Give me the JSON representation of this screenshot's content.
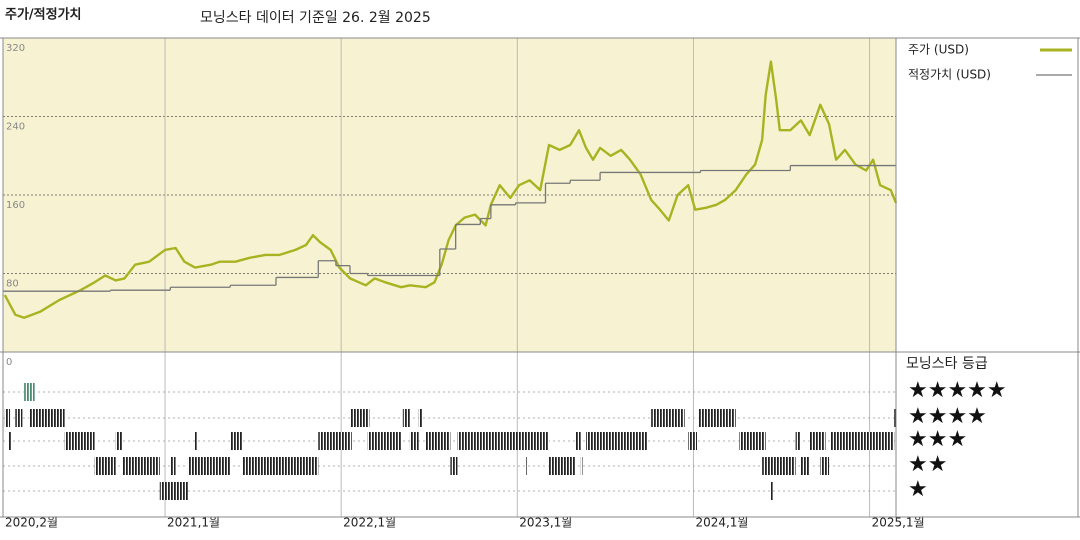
{
  "chart_data": {
    "type": "line",
    "title": "주가/적정가치",
    "subtitle": "모닝스타 데이터 기준일 26. 2월 2025",
    "xlim": [
      2020.08,
      2025.15
    ],
    "xticks": [
      {
        "value": 2020.08,
        "label": "2020,2월"
      },
      {
        "value": 2021,
        "label": "2021,1월"
      },
      {
        "value": 2022,
        "label": "2022,1월"
      },
      {
        "value": 2023,
        "label": "2023,1월"
      },
      {
        "value": 2024,
        "label": "2024,1월"
      },
      {
        "value": 2025,
        "label": "2025,1월"
      }
    ],
    "ylim": [
      0,
      320
    ],
    "yticks": [
      0,
      80,
      160,
      240,
      320
    ],
    "grid": true,
    "series": [
      {
        "name": "주가 (USD)",
        "color": "#a9b322",
        "x": [
          2020.09,
          2020.15,
          2020.2,
          2020.29,
          2020.4,
          2020.52,
          2020.6,
          2020.66,
          2020.72,
          2020.77,
          2020.83,
          2020.91,
          2021.0,
          2021.06,
          2021.11,
          2021.17,
          2021.26,
          2021.31,
          2021.4,
          2021.48,
          2021.57,
          2021.65,
          2021.74,
          2021.8,
          2021.84,
          2021.88,
          2021.94,
          2021.99,
          2022.05,
          2022.14,
          2022.19,
          2022.25,
          2022.34,
          2022.39,
          2022.48,
          2022.53,
          2022.57,
          2022.61,
          2022.65,
          2022.7,
          2022.76,
          2022.82,
          2022.85,
          2022.9,
          2022.96,
          2023.01,
          2023.07,
          2023.13,
          2023.18,
          2023.24,
          2023.3,
          2023.35,
          2023.39,
          2023.43,
          2023.47,
          2023.53,
          2023.59,
          2023.64,
          2023.7,
          2023.76,
          2023.81,
          2023.86,
          2023.91,
          2023.97,
          2024.01,
          2024.07,
          2024.13,
          2024.18,
          2024.24,
          2024.3,
          2024.35,
          2024.39,
          2024.41,
          2024.44,
          2024.47,
          2024.49,
          2024.55,
          2024.61,
          2024.66,
          2024.72,
          2024.77,
          2024.81,
          2024.86,
          2024.92,
          2024.98,
          2025.02,
          2025.06,
          2025.12,
          2025.15
        ],
        "values": [
          58,
          38,
          35,
          41,
          53,
          63,
          71,
          78,
          73,
          75,
          89,
          92,
          104,
          106,
          92,
          86,
          89,
          92,
          92,
          96,
          99,
          99,
          104,
          109,
          119,
          112,
          104,
          86,
          75,
          68,
          75,
          71,
          66,
          68,
          66,
          71,
          89,
          114,
          129,
          137,
          140,
          129,
          150,
          170,
          157,
          170,
          175,
          165,
          211,
          206,
          211,
          226,
          208,
          196,
          208,
          200,
          206,
          196,
          181,
          155,
          145,
          134,
          160,
          170,
          145,
          147,
          150,
          155,
          165,
          181,
          191,
          216,
          262,
          296,
          257,
          226,
          226,
          236,
          221,
          252,
          232,
          196,
          206,
          191,
          185,
          196,
          170,
          165,
          152
        ]
      },
      {
        "name": "적정가치 (USD)",
        "color": "#777777",
        "step": true,
        "x": [
          2020.08,
          2020.69,
          2021.03,
          2021.37,
          2021.63,
          2021.87,
          2021.97,
          2022.05,
          2022.15,
          2022.56,
          2022.65,
          2022.79,
          2022.85,
          2022.99,
          2023.16,
          2023.3,
          2023.47,
          2024.04,
          2024.55
        ],
        "values": [
          62,
          63,
          66,
          68,
          76,
          93,
          88,
          80,
          78,
          105,
          130,
          136,
          150,
          152,
          172,
          175,
          183,
          185,
          190
        ]
      }
    ],
    "ratings": {
      "title": "모닝스타 등급",
      "rows": [
        {
          "label": "★★★★★",
          "color": "#4a8a70",
          "periods": [
            [
              2020.2,
              2020.26
            ]
          ]
        },
        {
          "label": "★★★★",
          "color": "#222222",
          "periods": [
            [
              2020.09,
              2020.12
            ],
            [
              2020.15,
              2020.19
            ],
            [
              2020.23,
              2020.43
            ],
            [
              2022.05,
              2022.16
            ],
            [
              2022.35,
              2022.39
            ],
            [
              2022.44,
              2022.46
            ],
            [
              2023.76,
              2023.95
            ],
            [
              2024.03,
              2024.24
            ],
            [
              2025.14,
              2025.15
            ]
          ]
        },
        {
          "label": "★★★",
          "color": "#222222",
          "periods": [
            [
              2020.11,
              2020.13
            ],
            [
              2020.43,
              2020.6
            ],
            [
              2020.72,
              2020.76
            ],
            [
              2021.17,
              2021.18
            ],
            [
              2021.37,
              2021.44
            ],
            [
              2021.87,
              2022.06
            ],
            [
              2022.15,
              2022.34
            ],
            [
              2022.39,
              2022.44
            ],
            [
              2022.48,
              2022.62
            ],
            [
              2022.66,
              2023.18
            ],
            [
              2023.33,
              2023.36
            ],
            [
              2023.39,
              2023.74
            ],
            [
              2023.97,
              2024.02
            ],
            [
              2024.26,
              2024.41
            ],
            [
              2024.58,
              2024.61
            ],
            [
              2024.66,
              2024.75
            ],
            [
              2024.78,
              2025.14
            ]
          ]
        },
        {
          "label": "★★",
          "color": "#222222",
          "periods": [
            [
              2020.6,
              2020.72
            ],
            [
              2020.76,
              2020.97
            ],
            [
              2021.03,
              2021.06
            ],
            [
              2021.13,
              2021.37
            ],
            [
              2021.44,
              2021.87
            ],
            [
              2022.62,
              2022.66
            ],
            [
              2023.05,
              2023.06
            ],
            [
              2023.18,
              2023.33
            ],
            [
              2023.36,
              2023.37
            ],
            [
              2024.39,
              2024.58
            ],
            [
              2024.61,
              2024.66
            ],
            [
              2024.72,
              2024.77
            ]
          ]
        },
        {
          "label": "★",
          "color": "#222222",
          "periods": [
            [
              2020.97,
              2021.13
            ],
            [
              2024.44,
              2024.45
            ]
          ]
        }
      ]
    }
  }
}
